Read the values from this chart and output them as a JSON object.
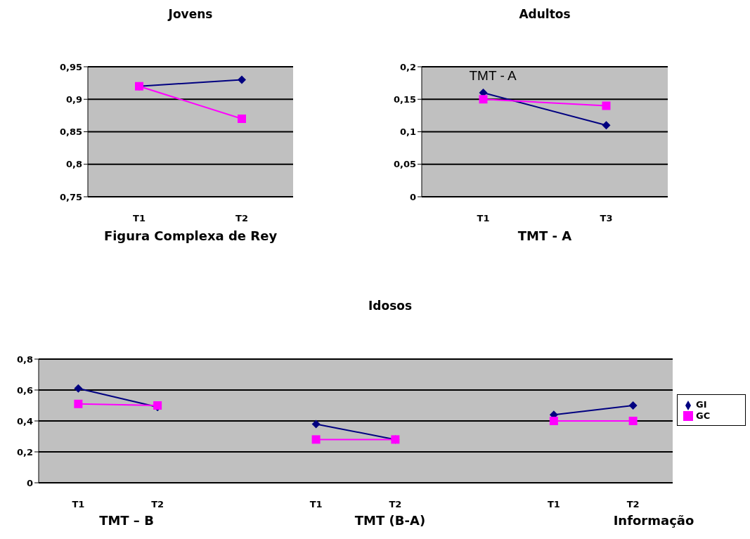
{
  "chart_data": [
    {
      "type": "line",
      "title": "Jovens",
      "xlabel": "Figura Complexa de Rey",
      "categories": [
        "T1",
        "T2"
      ],
      "ylim": [
        0.75,
        0.95
      ],
      "yticks": [
        {
          "value": 0.75,
          "label": "0,75"
        },
        {
          "value": 0.8,
          "label": "0,8"
        },
        {
          "value": 0.85,
          "label": "0,85"
        },
        {
          "value": 0.9,
          "label": "0,9"
        },
        {
          "value": 0.95,
          "label": "0,95"
        }
      ],
      "grid": "y",
      "legend": false,
      "series": [
        {
          "color": "#000080",
          "marker": "diamond",
          "values": [
            0.92,
            0.93
          ]
        },
        {
          "color": "#ff00ff",
          "marker": "square",
          "values": [
            0.92,
            0.87
          ]
        }
      ]
    },
    {
      "type": "line",
      "title": "Adultos",
      "xlabel": "TMT - A",
      "categories": [
        "T1",
        "T3"
      ],
      "ylim": [
        0,
        0.2
      ],
      "yticks": [
        0,
        {
          "value": 0.05,
          "label": "0,05"
        },
        {
          "value": 0.1,
          "label": "0,1"
        },
        {
          "value": 0.15,
          "label": "0,15"
        },
        {
          "value": 0.2,
          "label": "0,2"
        }
      ],
      "grid": "y",
      "legend": false,
      "annotations": [
        "TMT - A"
      ],
      "series": [
        {
          "color": "#000080",
          "marker": "diamond",
          "values": [
            0.16,
            0.11
          ]
        },
        {
          "color": "#ff00ff",
          "marker": "square",
          "values": [
            0.15,
            0.14
          ]
        }
      ]
    },
    {
      "type": "line",
      "title": "Idosos",
      "categories": [
        "T1",
        "T2",
        null,
        "T1",
        "T2",
        null,
        "T1",
        "T2"
      ],
      "ylim": [
        0,
        0.8
      ],
      "yticks": [
        0,
        {
          "value": 0.2,
          "label": "0,2"
        },
        {
          "value": 0.4,
          "label": "0,4"
        },
        {
          "value": 0.6,
          "label": "0,6"
        },
        {
          "value": 0.8,
          "label": "0,8"
        }
      ],
      "grid": "y",
      "legend": "right",
      "annotations": [
        "TMT – B",
        "TMT (B-A)",
        "Informação"
      ],
      "series": [
        {
          "name": "GI",
          "color": "#000080",
          "marker": "diamond",
          "values": [
            0.61,
            0.49,
            null,
            0.38,
            0.28,
            null,
            0.44,
            0.5
          ]
        },
        {
          "name": "GC",
          "color": "#ff00ff",
          "marker": "square",
          "values": [
            0.51,
            0.5,
            null,
            0.28,
            0.28,
            null,
            0.4,
            0.4
          ]
        }
      ]
    }
  ]
}
